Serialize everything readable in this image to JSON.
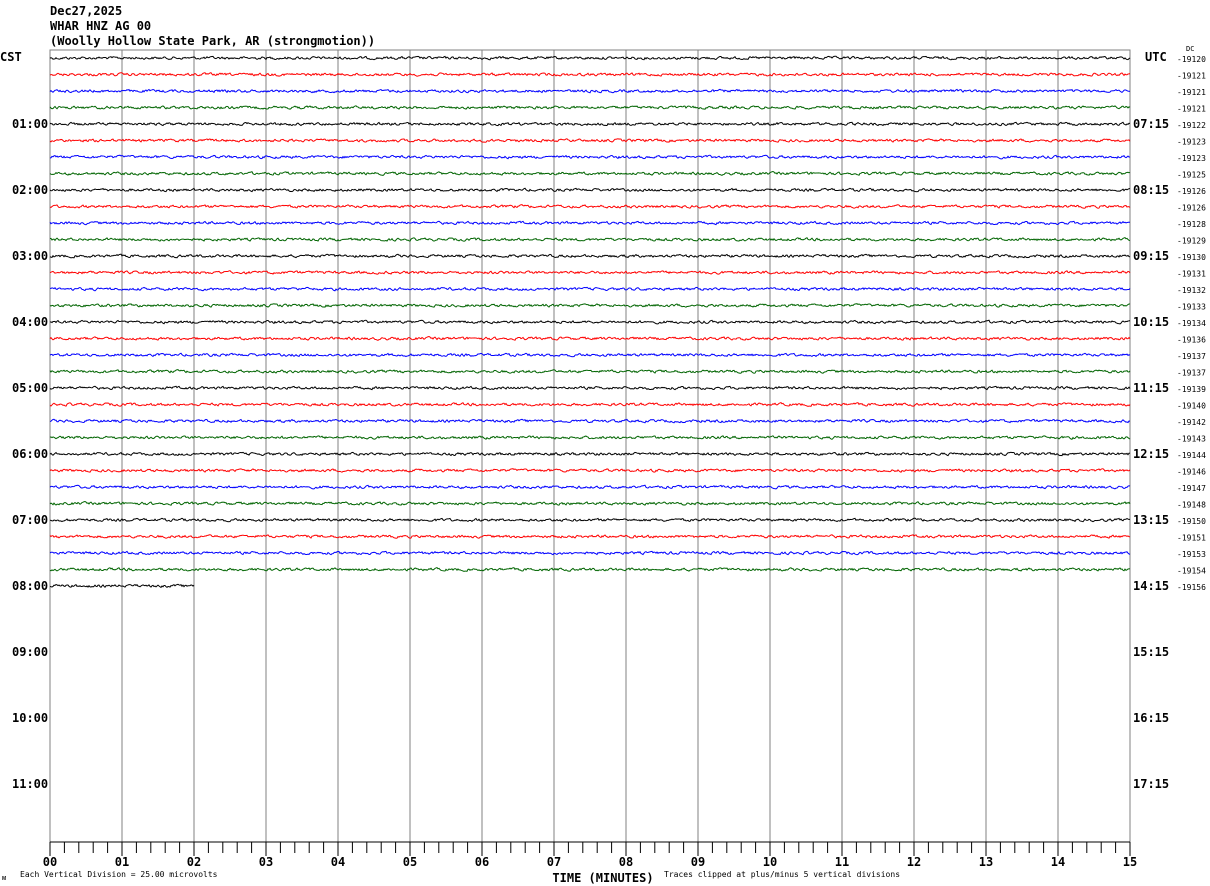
{
  "header": {
    "date": "Dec27,2025",
    "station": "WHAR HNZ AG 00",
    "location": "(Woolly Hollow State Park, AR (strongmotion))"
  },
  "chart_data": {
    "type": "line",
    "subtype": "helicorder",
    "left_timezone": "CST",
    "right_timezone": "UTC",
    "dc_label": "DC",
    "xlabel": "TIME (MINUTES)",
    "xlim": [
      0,
      15
    ],
    "x_ticks": [
      "00",
      "01",
      "02",
      "03",
      "04",
      "05",
      "06",
      "07",
      "08",
      "09",
      "10",
      "11",
      "12",
      "13",
      "14",
      "15"
    ],
    "minutes_per_row": 15,
    "trace_colors": [
      "#000000",
      "#ff0000",
      "#0000ff",
      "#006400"
    ],
    "left_hour_labels": [
      "01:00",
      "02:00",
      "03:00",
      "04:00",
      "05:00",
      "06:00",
      "07:00",
      "08:00",
      "09:00",
      "10:00",
      "11:00"
    ],
    "right_hour_labels": [
      "07:15",
      "08:15",
      "09:15",
      "10:15",
      "11:15",
      "12:15",
      "13:15",
      "14:15",
      "15:15",
      "16:15",
      "17:15"
    ],
    "row_count": 48,
    "rows_with_data": 33,
    "last_row_minutes": 2,
    "dc_offsets": [
      "-19120",
      "-19121",
      "-19121",
      "-19121",
      "-19122",
      "-19123",
      "-19123",
      "-19125",
      "-19126",
      "-19126",
      "-19128",
      "-19129",
      "-19130",
      "-19131",
      "-19132",
      "-19133",
      "-19134",
      "-19136",
      "-19137",
      "-19137",
      "-19139",
      "-19140",
      "-19142",
      "-19143",
      "-19144",
      "-19146",
      "-19147",
      "-19148",
      "-19150",
      "-19151",
      "-19153",
      "-19154",
      "-19156"
    ]
  },
  "footer": {
    "scale_note": "Each Vertical Division =   25.00 microvolts",
    "clip_note": "Traces clipped at plus/minus 5 vertical divisions"
  }
}
